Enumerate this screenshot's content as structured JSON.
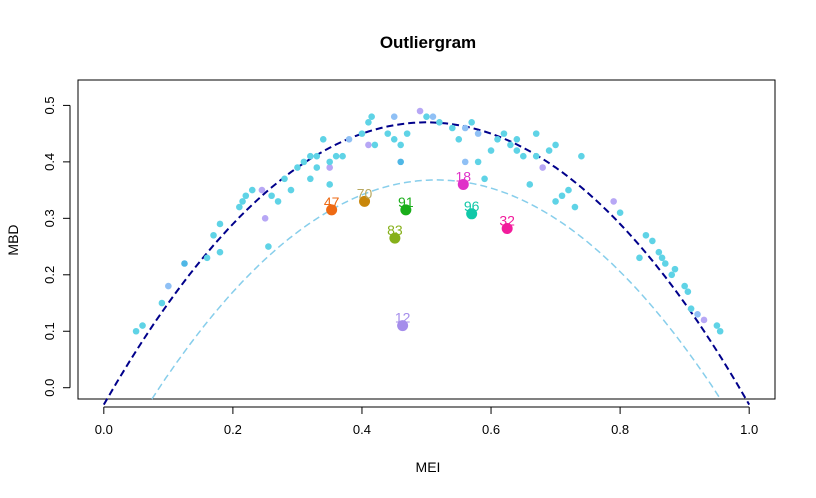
{
  "chart_data": {
    "type": "scatter",
    "title": "Outliergram",
    "xlabel": "MEI",
    "ylabel": "MBD",
    "xlim": [
      -0.04,
      1.04
    ],
    "ylim": [
      -0.02,
      0.545
    ],
    "xticks": [
      "0.0",
      "0.2",
      "0.4",
      "0.6",
      "0.8",
      "1.0"
    ],
    "yticks": [
      "0.0",
      "0.1",
      "0.2",
      "0.3",
      "0.4",
      "0.5"
    ],
    "grid": false,
    "upper_parabola": {
      "style": "dashed",
      "color": "#00008B",
      "a0": -0.03,
      "a1": 2.0,
      "a2": -2.0
    },
    "lower_parabola": {
      "style": "dashed",
      "color": "#87CEEB",
      "vertex_x": 0.515,
      "vertex_y": 0.368,
      "curvature": 2.0
    },
    "points": [
      [
        0.05,
        0.1,
        "#5fd3e6"
      ],
      [
        0.06,
        0.11,
        "#5fd3e6"
      ],
      [
        0.09,
        0.15,
        "#5fd3e6"
      ],
      [
        0.1,
        0.18,
        "#8fc0f5"
      ],
      [
        0.125,
        0.22,
        "#4fb7e6"
      ],
      [
        0.16,
        0.23,
        "#5fd3e6"
      ],
      [
        0.17,
        0.27,
        "#5fd3e6"
      ],
      [
        0.18,
        0.24,
        "#5fd3e6"
      ],
      [
        0.18,
        0.29,
        "#5fd3e6"
      ],
      [
        0.21,
        0.32,
        "#5fd3e6"
      ],
      [
        0.215,
        0.33,
        "#5fd3e6"
      ],
      [
        0.22,
        0.34,
        "#5fd3e6"
      ],
      [
        0.23,
        0.35,
        "#5fd3e6"
      ],
      [
        0.245,
        0.35,
        "#b7a7f5"
      ],
      [
        0.25,
        0.3,
        "#b7a7f5"
      ],
      [
        0.255,
        0.25,
        "#5fd3e6"
      ],
      [
        0.26,
        0.34,
        "#5fd3e6"
      ],
      [
        0.27,
        0.33,
        "#5fd3e6"
      ],
      [
        0.28,
        0.37,
        "#5fd3e6"
      ],
      [
        0.29,
        0.35,
        "#5fd3e6"
      ],
      [
        0.3,
        0.39,
        "#5fd3e6"
      ],
      [
        0.31,
        0.4,
        "#5fd3e6"
      ],
      [
        0.32,
        0.41,
        "#5fd3e6"
      ],
      [
        0.32,
        0.37,
        "#5fd3e6"
      ],
      [
        0.33,
        0.41,
        "#5fd3e6"
      ],
      [
        0.33,
        0.39,
        "#5fd3e6"
      ],
      [
        0.34,
        0.44,
        "#5fd3e6"
      ],
      [
        0.35,
        0.36,
        "#5fd3e6"
      ],
      [
        0.35,
        0.39,
        "#b7a7f5"
      ],
      [
        0.35,
        0.4,
        "#5fd3e6"
      ],
      [
        0.36,
        0.41,
        "#5fd3e6"
      ],
      [
        0.37,
        0.41,
        "#5fd3e6"
      ],
      [
        0.38,
        0.44,
        "#8fc0f5"
      ],
      [
        0.4,
        0.45,
        "#5fd3e6"
      ],
      [
        0.41,
        0.43,
        "#b7a7f5"
      ],
      [
        0.41,
        0.47,
        "#5fd3e6"
      ],
      [
        0.415,
        0.48,
        "#5fd3e6"
      ],
      [
        0.42,
        0.43,
        "#5fd3e6"
      ],
      [
        0.44,
        0.45,
        "#5fd3e6"
      ],
      [
        0.45,
        0.44,
        "#5fd3e6"
      ],
      [
        0.45,
        0.48,
        "#8fc0f5"
      ],
      [
        0.46,
        0.4,
        "#4fb7e6"
      ],
      [
        0.46,
        0.43,
        "#5fd3e6"
      ],
      [
        0.47,
        0.45,
        "#5fd3e6"
      ],
      [
        0.49,
        0.49,
        "#b7a7f5"
      ],
      [
        0.5,
        0.48,
        "#5fd3e6"
      ],
      [
        0.51,
        0.48,
        "#8fc0f5"
      ],
      [
        0.52,
        0.47,
        "#5fd3e6"
      ],
      [
        0.54,
        0.46,
        "#5fd3e6"
      ],
      [
        0.55,
        0.44,
        "#5fd3e6"
      ],
      [
        0.56,
        0.46,
        "#8fc0f5"
      ],
      [
        0.56,
        0.4,
        "#8fc0f5"
      ],
      [
        0.57,
        0.47,
        "#5fd3e6"
      ],
      [
        0.58,
        0.45,
        "#8fc0f5"
      ],
      [
        0.58,
        0.4,
        "#5fd3e6"
      ],
      [
        0.59,
        0.37,
        "#5fd3e6"
      ],
      [
        0.6,
        0.42,
        "#5fd3e6"
      ],
      [
        0.61,
        0.44,
        "#5fd3e6"
      ],
      [
        0.62,
        0.45,
        "#5fd3e6"
      ],
      [
        0.63,
        0.43,
        "#5fd3e6"
      ],
      [
        0.64,
        0.44,
        "#5fd3e6"
      ],
      [
        0.64,
        0.42,
        "#5fd3e6"
      ],
      [
        0.65,
        0.41,
        "#5fd3e6"
      ],
      [
        0.66,
        0.36,
        "#5fd3e6"
      ],
      [
        0.67,
        0.45,
        "#5fd3e6"
      ],
      [
        0.67,
        0.41,
        "#5fd3e6"
      ],
      [
        0.68,
        0.39,
        "#b7a7f5"
      ],
      [
        0.69,
        0.42,
        "#5fd3e6"
      ],
      [
        0.7,
        0.43,
        "#5fd3e6"
      ],
      [
        0.7,
        0.33,
        "#5fd3e6"
      ],
      [
        0.71,
        0.34,
        "#5fd3e6"
      ],
      [
        0.72,
        0.35,
        "#5fd3e6"
      ],
      [
        0.73,
        0.32,
        "#5fd3e6"
      ],
      [
        0.74,
        0.41,
        "#5fd3e6"
      ],
      [
        0.79,
        0.33,
        "#b7a7f5"
      ],
      [
        0.8,
        0.31,
        "#5fd3e6"
      ],
      [
        0.83,
        0.23,
        "#5fd3e6"
      ],
      [
        0.84,
        0.27,
        "#5fd3e6"
      ],
      [
        0.85,
        0.26,
        "#5fd3e6"
      ],
      [
        0.86,
        0.24,
        "#5fd3e6"
      ],
      [
        0.865,
        0.23,
        "#5fd3e6"
      ],
      [
        0.87,
        0.22,
        "#5fd3e6"
      ],
      [
        0.88,
        0.2,
        "#5fd3e6"
      ],
      [
        0.885,
        0.21,
        "#5fd3e6"
      ],
      [
        0.9,
        0.18,
        "#5fd3e6"
      ],
      [
        0.905,
        0.17,
        "#5fd3e6"
      ],
      [
        0.91,
        0.14,
        "#5fd3e6"
      ],
      [
        0.92,
        0.13,
        "#8fc0f5"
      ],
      [
        0.93,
        0.12,
        "#b7a7f5"
      ],
      [
        0.95,
        0.11,
        "#5fd3e6"
      ],
      [
        0.955,
        0.1,
        "#5fd3e6"
      ]
    ],
    "outliers": [
      {
        "label": "47",
        "x": 0.353,
        "y": 0.315,
        "color": "#EE6A13"
      },
      {
        "label": "70",
        "x": 0.404,
        "y": 0.33,
        "color": "#C8860A",
        "label_color": "#B8A860"
      },
      {
        "label": "91",
        "x": 0.468,
        "y": 0.315,
        "color": "#1AAE1A"
      },
      {
        "label": "83",
        "x": 0.451,
        "y": 0.265,
        "color": "#86B01A"
      },
      {
        "label": "18",
        "x": 0.557,
        "y": 0.36,
        "color": "#E030C8"
      },
      {
        "label": "96",
        "x": 0.57,
        "y": 0.308,
        "color": "#10C8A8"
      },
      {
        "label": "32",
        "x": 0.625,
        "y": 0.282,
        "color": "#F21C9C"
      },
      {
        "label": "12",
        "x": 0.463,
        "y": 0.11,
        "color": "#A58DEB"
      }
    ]
  }
}
